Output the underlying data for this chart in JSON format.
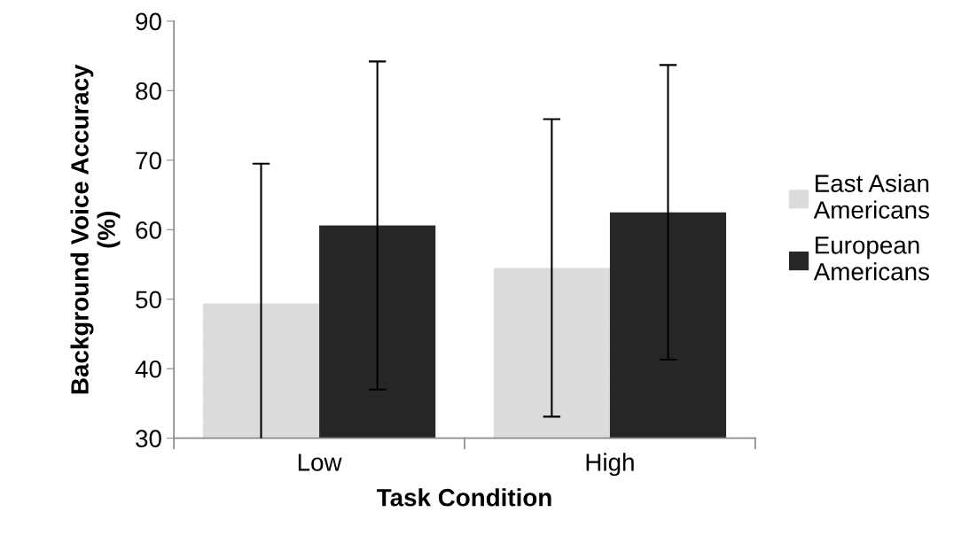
{
  "chart_data": {
    "type": "bar",
    "xlabel": "Task Condition",
    "ylabel": "Background Voice Accuracy\n(%)",
    "categories": [
      "Low",
      "High"
    ],
    "series": [
      {
        "name": "East Asian\nAmericans",
        "color": "#dcdcdc",
        "values": [
          49.4,
          54.5
        ],
        "errors": [
          20.1,
          21.4
        ]
      },
      {
        "name": "European\nAmericans",
        "color": "#262626",
        "values": [
          60.6,
          62.5
        ],
        "errors": [
          23.6,
          21.2
        ]
      }
    ],
    "ylim": [
      30,
      90
    ],
    "yticks": [
      30,
      40,
      50,
      60,
      70,
      80,
      90
    ],
    "grid": false,
    "legend": "right"
  }
}
